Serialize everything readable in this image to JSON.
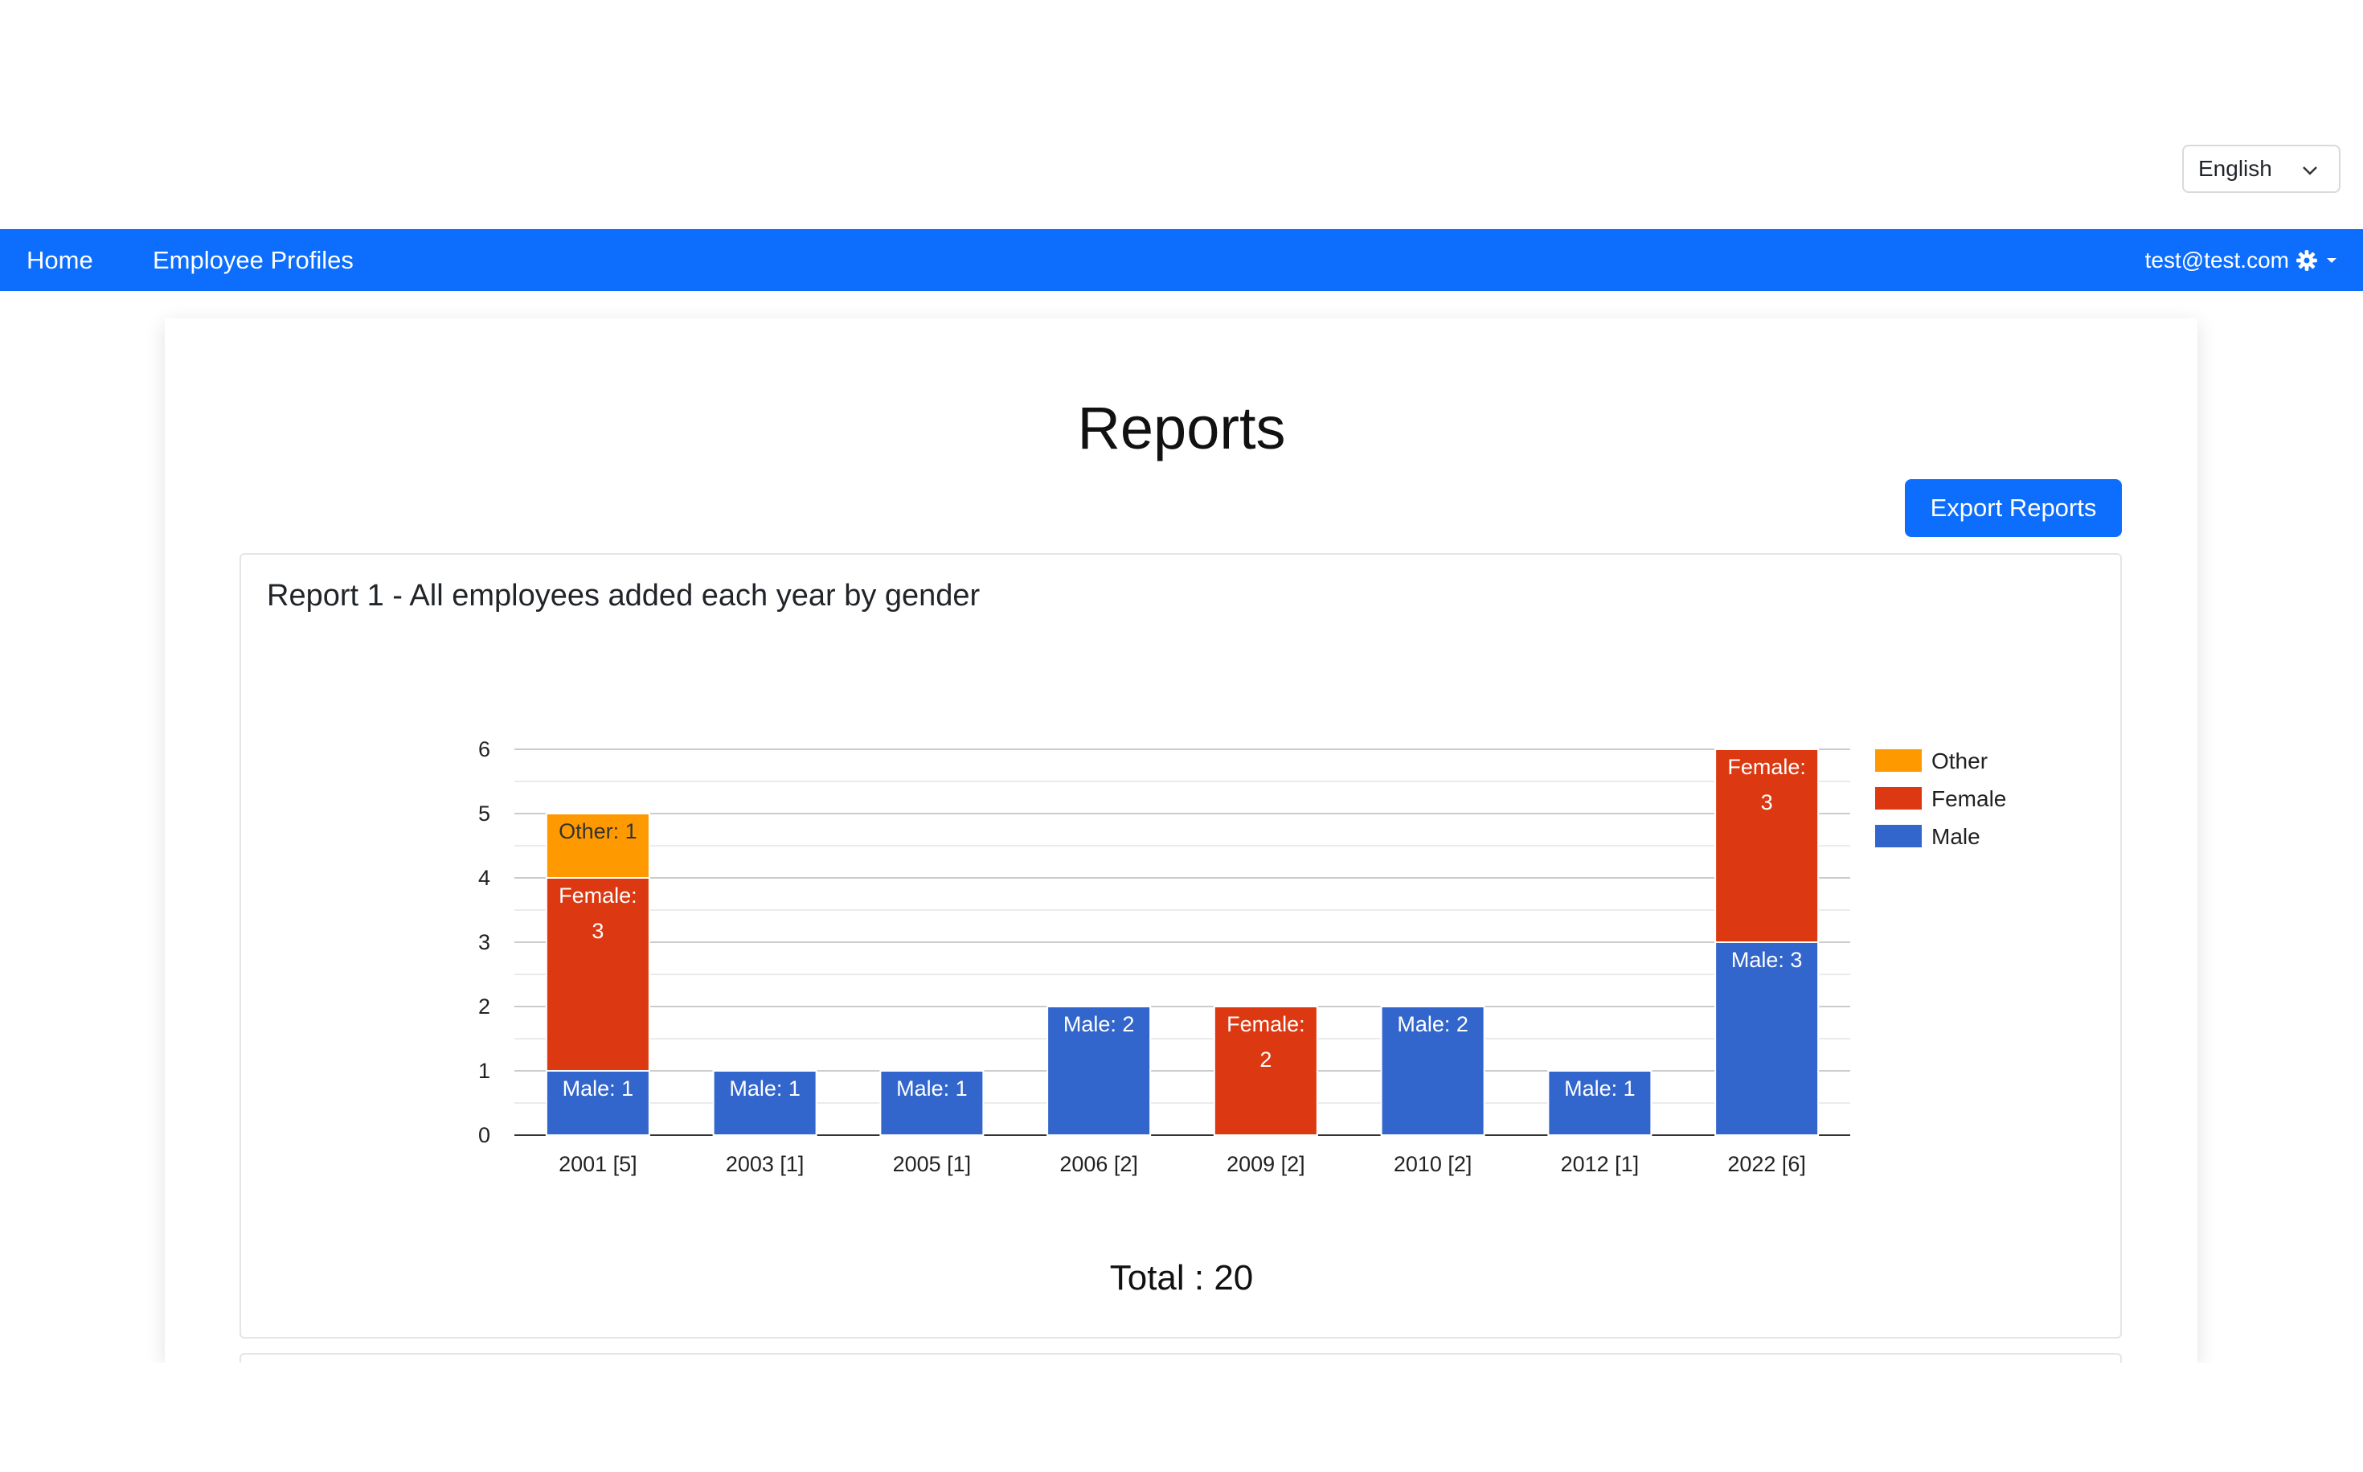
{
  "language": {
    "selected": "English"
  },
  "nav": {
    "home": "Home",
    "profiles": "Employee Profiles",
    "user": "test@test.com"
  },
  "page": {
    "title": "Reports",
    "export_label": "Export Reports"
  },
  "report1": {
    "title": "Report 1 - All employees added each year by gender",
    "total_label": "Total : 20"
  },
  "colors": {
    "primary": "#0d6efd",
    "male": "#3366cc",
    "female": "#dc3912",
    "other": "#ff9900"
  },
  "chart_data": {
    "type": "bar",
    "stacked": true,
    "categories": [
      "2001 [5]",
      "2003 [1]",
      "2005 [1]",
      "2006 [2]",
      "2009 [2]",
      "2010 [2]",
      "2012 [1]",
      "2022 [6]"
    ],
    "series": [
      {
        "name": "Male",
        "values": [
          1,
          1,
          1,
          2,
          0,
          2,
          1,
          3
        ],
        "color": "#3366cc"
      },
      {
        "name": "Female",
        "values": [
          3,
          0,
          0,
          0,
          2,
          0,
          0,
          3
        ],
        "color": "#dc3912"
      },
      {
        "name": "Other",
        "values": [
          1,
          0,
          0,
          0,
          0,
          0,
          0,
          0
        ],
        "color": "#ff9900"
      }
    ],
    "legend_order": [
      "Other",
      "Female",
      "Male"
    ],
    "legend_position": "right",
    "ylim": [
      0,
      6
    ],
    "yticks": [
      0,
      1,
      2,
      3,
      4,
      5,
      6
    ],
    "grid": true,
    "data_labels": true
  }
}
